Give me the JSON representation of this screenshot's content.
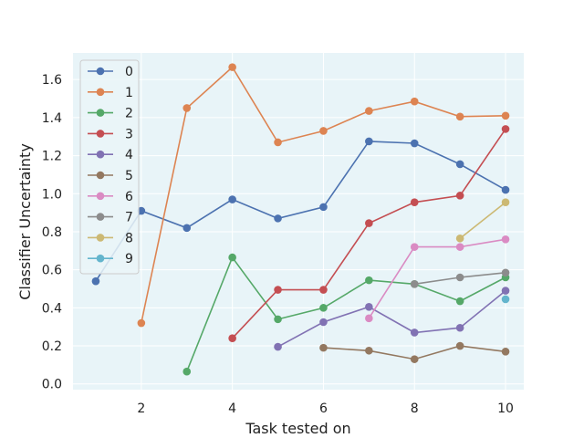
{
  "chart_data": {
    "type": "line",
    "title": "",
    "xlabel": "Task tested on",
    "ylabel": "Classifier Uncertainty",
    "xlim": [
      0.5,
      10.4
    ],
    "ylim": [
      -0.03,
      1.74
    ],
    "xticks": [
      2,
      4,
      6,
      8,
      10
    ],
    "yticks": [
      0.0,
      0.2,
      0.4,
      0.6,
      0.8,
      1.0,
      1.2,
      1.4,
      1.6
    ],
    "grid": true,
    "legend_position": "top-left",
    "background_color": "#e8f4f8",
    "series": [
      {
        "name": "0",
        "color": "#4c72b0",
        "x": [
          1,
          2,
          3,
          4,
          5,
          6,
          7,
          8,
          9,
          10
        ],
        "y": [
          0.54,
          0.91,
          0.82,
          0.97,
          0.87,
          0.93,
          1.275,
          1.265,
          1.155,
          1.02
        ]
      },
      {
        "name": "1",
        "color": "#dd8452",
        "x": [
          2,
          3,
          4,
          5,
          6,
          7,
          8,
          9,
          10
        ],
        "y": [
          0.32,
          1.45,
          1.665,
          1.27,
          1.33,
          1.435,
          1.485,
          1.405,
          1.41
        ]
      },
      {
        "name": "2",
        "color": "#55a868",
        "x": [
          3,
          4,
          5,
          6,
          7,
          8,
          9,
          10
        ],
        "y": [
          0.065,
          0.665,
          0.34,
          0.4,
          0.545,
          0.525,
          0.435,
          0.56
        ]
      },
      {
        "name": "3",
        "color": "#c44e52",
        "x": [
          4,
          5,
          6,
          7,
          8,
          9,
          10
        ],
        "y": [
          0.24,
          0.495,
          0.495,
          0.845,
          0.955,
          0.99,
          1.34
        ]
      },
      {
        "name": "4",
        "color": "#8172b3",
        "x": [
          5,
          6,
          7,
          8,
          9,
          10
        ],
        "y": [
          0.195,
          0.325,
          0.405,
          0.27,
          0.295,
          0.49
        ]
      },
      {
        "name": "5",
        "color": "#937860",
        "x": [
          6,
          7,
          8,
          9,
          10
        ],
        "y": [
          0.19,
          0.175,
          0.13,
          0.2,
          0.17
        ]
      },
      {
        "name": "6",
        "color": "#da8bc3",
        "x": [
          7,
          8,
          9,
          10
        ],
        "y": [
          0.345,
          0.72,
          0.72,
          0.76
        ]
      },
      {
        "name": "7",
        "color": "#8c8c8c",
        "x": [
          8,
          9,
          10
        ],
        "y": [
          0.525,
          0.56,
          0.585
        ]
      },
      {
        "name": "8",
        "color": "#ccb974",
        "x": [
          9,
          10
        ],
        "y": [
          0.765,
          0.955
        ]
      },
      {
        "name": "9",
        "color": "#64b5cd",
        "x": [
          10
        ],
        "y": [
          0.445
        ]
      }
    ]
  }
}
